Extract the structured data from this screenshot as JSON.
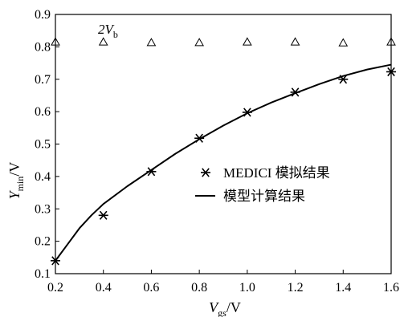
{
  "chart_data": {
    "type": "line",
    "x_axis": {
      "title_main": "V",
      "title_sub": "gs",
      "title_unit": "/V",
      "range": [
        0.2,
        1.6
      ],
      "ticks": [
        "0.2",
        "0.4",
        "0.6",
        "0.8",
        "1.0",
        "1.2",
        "1.4",
        "1.6"
      ],
      "tick_values": [
        0.2,
        0.4,
        0.6,
        0.8,
        1.0,
        1.2,
        1.4,
        1.6
      ]
    },
    "y_axis": {
      "title_main": "Y",
      "title_sub": "min",
      "title_unit": "/V",
      "range": [
        0.1,
        0.9
      ],
      "ticks": [
        "0.1",
        "0.2",
        "0.3",
        "0.4",
        "0.5",
        "0.6",
        "0.7",
        "0.8",
        "0.9"
      ],
      "tick_values": [
        0.1,
        0.2,
        0.3,
        0.4,
        0.5,
        0.6,
        0.7,
        0.8,
        0.9
      ]
    },
    "series": [
      {
        "name": "MEDICI 模拟结果",
        "kind": "scatter",
        "marker": "asterisk",
        "x": [
          0.2,
          0.4,
          0.6,
          0.8,
          1.0,
          1.2,
          1.4,
          1.6
        ],
        "y": [
          0.14,
          0.28,
          0.415,
          0.518,
          0.598,
          0.66,
          0.7,
          0.723
        ]
      },
      {
        "name": "模型计算结果",
        "kind": "line",
        "x": [
          0.2,
          0.25,
          0.3,
          0.35,
          0.4,
          0.5,
          0.6,
          0.7,
          0.8,
          0.9,
          1.0,
          1.1,
          1.2,
          1.3,
          1.4,
          1.5,
          1.6
        ],
        "y": [
          0.14,
          0.19,
          0.24,
          0.28,
          0.315,
          0.37,
          0.42,
          0.47,
          0.515,
          0.557,
          0.595,
          0.628,
          0.657,
          0.685,
          0.71,
          0.73,
          0.745
        ]
      },
      {
        "name": "",
        "kind": "scatter",
        "marker": "triangle",
        "x": [
          0.2,
          0.4,
          0.6,
          0.8,
          1.0,
          1.2,
          1.4,
          1.6
        ],
        "y": [
          0.815,
          0.815,
          0.813,
          0.813,
          0.815,
          0.815,
          0.812,
          0.815
        ]
      }
    ],
    "annotation": {
      "main": "2V",
      "sub": "b"
    },
    "legend_placement": "center-right",
    "grid": false
  }
}
